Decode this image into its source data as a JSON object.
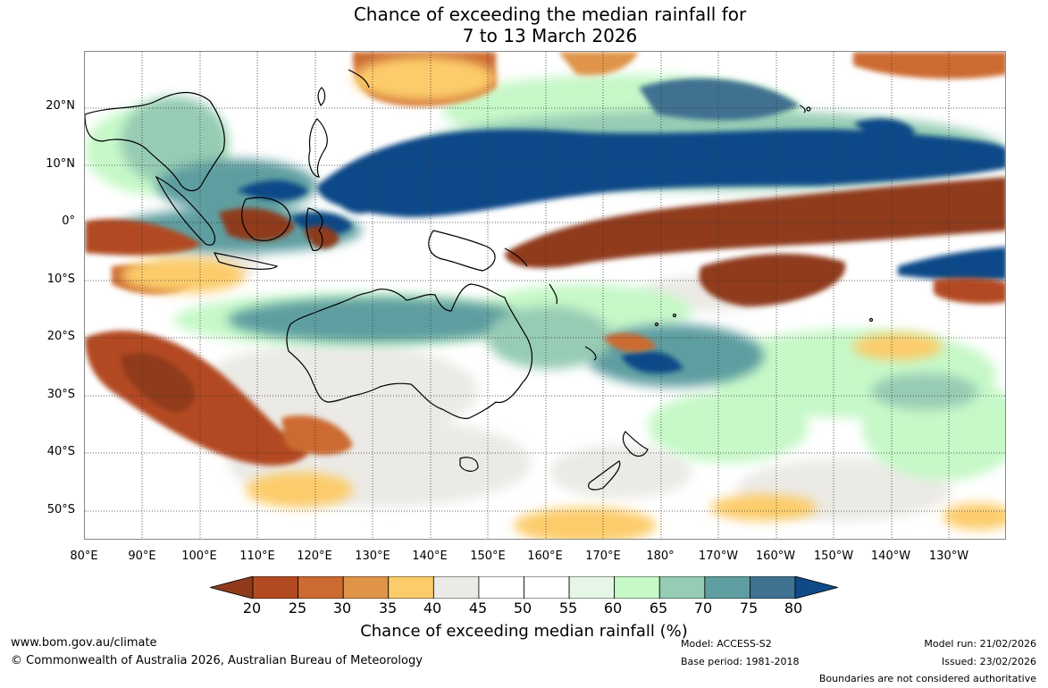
{
  "header": {
    "title_line1": "Chance of exceeding the median rainfall for",
    "title_line2": "7 to 13 March 2026"
  },
  "axes": {
    "lat_labels": [
      "20°N",
      "10°N",
      "0°",
      "10°S",
      "20°S",
      "30°S",
      "40°S",
      "50°S"
    ],
    "lon_labels": [
      "80°E",
      "90°E",
      "100°E",
      "110°E",
      "120°E",
      "130°E",
      "140°E",
      "150°E",
      "160°E",
      "170°E",
      "180°",
      "170°W",
      "160°W",
      "150°W",
      "140°W",
      "130°W"
    ]
  },
  "colorbar": {
    "ticks": [
      "20",
      "25",
      "30",
      "35",
      "40",
      "45",
      "50",
      "55",
      "60",
      "65",
      "70",
      "75",
      "80"
    ],
    "colors": [
      "#8f3b1b",
      "#b24a22",
      "#cc6a32",
      "#df9448",
      "#fccc6a",
      "#eceae6",
      "#ffffff",
      "#ffffff",
      "#e6f6e6",
      "#c6f8c8",
      "#96ccb4",
      "#5f9ea0",
      "#3f7191",
      "#0f4a88"
    ],
    "label": "Chance of exceeding median rainfall (%)"
  },
  "footer": {
    "website": "www.bom.gov.au/climate",
    "copyright": "© Commonwealth of Australia 2026, Australian Bureau of Meteorology",
    "model": "Model: ACCESS-S2",
    "base_period": "Base period: 1981-2018",
    "model_run": "Model run: 21/02/2026",
    "issued": "Issued: 23/02/2026",
    "boundaries": "Boundaries are not considered authoritative"
  }
}
